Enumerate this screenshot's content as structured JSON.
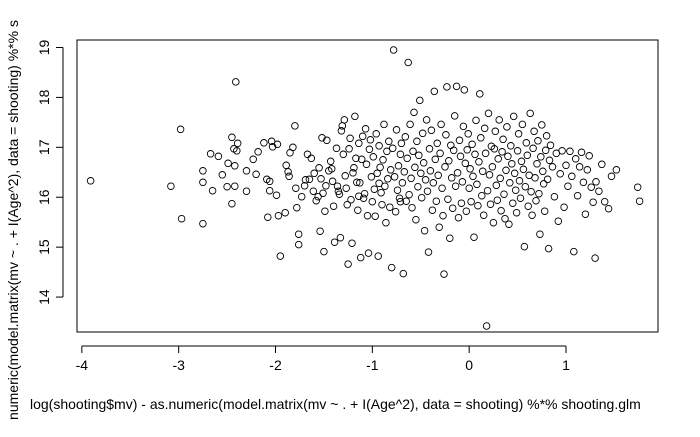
{
  "chart_data": {
    "type": "scatter",
    "marker": "open-circle",
    "marker_color": "#000000",
    "background": "#ffffff",
    "xlabel": "log(shooting$mv) - as.numeric(model.matrix(mv ~ . + I(Age^2), data = shooting) %*% shooting.glm",
    "ylabel": "numeric(model.matrix(mv ~ . + I(Age^2), data = shooting) %*% s",
    "xlim": [
      -4.05,
      1.95
    ],
    "ylim": [
      13.3,
      19.15
    ],
    "xticks": [
      -4,
      -3,
      -2,
      -1,
      0,
      1
    ],
    "xtick_labels": [
      "-4",
      "-3",
      "-2",
      "-1",
      "0",
      "1"
    ],
    "yticks": [
      14,
      15,
      16,
      17,
      18,
      19
    ],
    "ytick_labels": [
      "14",
      "15",
      "16",
      "17",
      "18",
      "19"
    ],
    "grid": false,
    "legend": "none",
    "points": [
      [
        -3.91,
        16.33
      ],
      [
        -3.08,
        16.22
      ],
      [
        -2.98,
        17.36
      ],
      [
        -2.97,
        15.57
      ],
      [
        -2.75,
        16.53
      ],
      [
        -2.75,
        16.3
      ],
      [
        -2.75,
        15.47
      ],
      [
        -2.67,
        16.87
      ],
      [
        -2.65,
        16.13
      ],
      [
        -2.59,
        16.82
      ],
      [
        -2.5,
        16.21
      ],
      [
        -2.49,
        16.68
      ],
      [
        -2.45,
        15.87
      ],
      [
        -2.45,
        17.2
      ],
      [
        -2.43,
        16.97
      ],
      [
        -2.42,
        16.22
      ],
      [
        -2.42,
        16.63
      ],
      [
        -2.41,
        18.31
      ],
      [
        -2.4,
        16.93
      ],
      [
        -2.39,
        17.08
      ],
      [
        -2.3,
        16.53
      ],
      [
        -2.23,
        16.76
      ],
      [
        -2.2,
        16.46
      ],
      [
        -2.18,
        16.91
      ],
      [
        -2.12,
        17.09
      ],
      [
        -2.09,
        16.36
      ],
      [
        -2.08,
        15.6
      ],
      [
        -2.06,
        16.13
      ],
      [
        -2.06,
        16.32
      ],
      [
        -2.04,
        17.12
      ],
      [
        -2.03,
        17.01
      ],
      [
        -1.99,
        16.04
      ],
      [
        -1.97,
        15.63
      ],
      [
        -1.95,
        14.82
      ],
      [
        -1.9,
        15.69
      ],
      [
        -1.89,
        16.64
      ],
      [
        -1.87,
        16.51
      ],
      [
        -1.86,
        16.42
      ],
      [
        -1.85,
        16.89
      ],
      [
        -1.82,
        17.0
      ],
      [
        -1.8,
        17.43
      ],
      [
        -1.79,
        16.18
      ],
      [
        -1.78,
        15.79
      ],
      [
        -1.76,
        15.26
      ],
      [
        -1.76,
        15.05
      ],
      [
        -1.7,
        16.23
      ],
      [
        -1.69,
        16.35
      ],
      [
        -1.67,
        16.86
      ],
      [
        -1.65,
        16.36
      ],
      [
        -1.61,
        16.12
      ],
      [
        -1.6,
        16.48
      ],
      [
        -1.58,
        15.93
      ],
      [
        -1.56,
        16.01
      ],
      [
        -1.55,
        16.59
      ],
      [
        -1.54,
        15.32
      ],
      [
        -1.53,
        16.37
      ],
      [
        -1.52,
        17.19
      ],
      [
        -1.51,
        16.08
      ],
      [
        -1.5,
        14.91
      ],
      [
        -1.49,
        15.72
      ],
      [
        -1.48,
        16.23
      ],
      [
        -1.47,
        17.14
      ],
      [
        -1.45,
        16.53
      ],
      [
        -1.43,
        16.72
      ],
      [
        -1.42,
        16.57
      ],
      [
        -1.41,
        16.32
      ],
      [
        -1.4,
        15.82
      ],
      [
        -1.39,
        15.1
      ],
      [
        -1.37,
        16.98
      ],
      [
        -1.36,
        16.22
      ],
      [
        -1.35,
        16.12
      ],
      [
        -1.34,
        16.06
      ],
      [
        -1.33,
        15.19
      ],
      [
        -1.32,
        17.33
      ],
      [
        -1.31,
        17.43
      ],
      [
        -1.3,
        16.86
      ],
      [
        -1.29,
        17.55
      ],
      [
        -1.28,
        16.43
      ],
      [
        -1.27,
        16.18
      ],
      [
        -1.26,
        15.85
      ],
      [
        -1.25,
        14.66
      ],
      [
        -1.24,
        16.97
      ],
      [
        -1.23,
        17.18
      ],
      [
        -1.22,
        15.95
      ],
      [
        -1.21,
        15.08
      ],
      [
        -1.2,
        16.49
      ],
      [
        -1.19,
        16.59
      ],
      [
        -1.18,
        17.62
      ],
      [
        -1.17,
        16.78
      ],
      [
        -1.16,
        16.3
      ],
      [
        -1.15,
        15.74
      ],
      [
        -1.14,
        17.08
      ],
      [
        -1.13,
        16.29
      ],
      [
        -1.12,
        14.79
      ],
      [
        -1.11,
        16.76
      ],
      [
        -1.1,
        17.22
      ],
      [
        -1.09,
        15.98
      ],
      [
        -1.08,
        16.07
      ],
      [
        -1.07,
        17.37
      ],
      [
        -1.06,
        16.66
      ],
      [
        -1.05,
        15.63
      ],
      [
        -1.04,
        14.88
      ],
      [
        -1.03,
        16.96
      ],
      [
        -1.02,
        17.15
      ],
      [
        -1.01,
        16.41
      ],
      [
        -1.0,
        15.91
      ],
      [
        -0.99,
        16.81
      ],
      [
        -0.98,
        16.16
      ],
      [
        -0.97,
        15.62
      ],
      [
        -0.96,
        17.27
      ],
      [
        -0.95,
        16.48
      ],
      [
        -0.94,
        14.82
      ],
      [
        -0.93,
        17.03
      ],
      [
        -0.92,
        16.6
      ],
      [
        -0.91,
        16.09
      ],
      [
        -0.9,
        15.85
      ],
      [
        -0.89,
        16.75
      ],
      [
        -0.88,
        17.46
      ],
      [
        -0.87,
        16.22
      ],
      [
        -0.86,
        15.49
      ],
      [
        -0.85,
        16.92
      ],
      [
        -0.84,
        16.37
      ],
      [
        -0.83,
        17.12
      ],
      [
        -0.82,
        15.8
      ],
      [
        -0.81,
        16.55
      ],
      [
        -0.8,
        14.59
      ],
      [
        -0.79,
        16.98
      ],
      [
        -0.78,
        18.95
      ],
      [
        -0.77,
        16.41
      ],
      [
        -0.76,
        15.71
      ],
      [
        -0.75,
        17.35
      ],
      [
        -0.74,
        16.14
      ],
      [
        -0.73,
        16.63
      ],
      [
        -0.72,
        15.98
      ],
      [
        -0.71,
        16.86
      ],
      [
        -0.7,
        17.08
      ],
      [
        -0.69,
        16.29
      ],
      [
        -0.68,
        14.47
      ],
      [
        -0.67,
        16.51
      ],
      [
        -0.66,
        17.21
      ],
      [
        -0.65,
        15.92
      ],
      [
        -0.64,
        16.78
      ],
      [
        -0.63,
        18.7
      ],
      [
        -0.62,
        16.05
      ],
      [
        -0.61,
        17.46
      ],
      [
        -0.6,
        16.38
      ],
      [
        -0.59,
        15.79
      ],
      [
        -0.58,
        16.92
      ],
      [
        -0.57,
        17.7
      ],
      [
        -0.56,
        16.6
      ],
      [
        -0.55,
        15.55
      ],
      [
        -0.54,
        17.12
      ],
      [
        -0.53,
        16.21
      ],
      [
        -0.52,
        16.84
      ],
      [
        -0.51,
        17.94
      ],
      [
        -0.5,
        16.48
      ],
      [
        -0.49,
        15.99
      ],
      [
        -0.48,
        17.28
      ],
      [
        -0.47,
        16.69
      ],
      [
        -0.46,
        15.33
      ],
      [
        -0.45,
        16.35
      ],
      [
        -0.44,
        17.55
      ],
      [
        -0.43,
        16.12
      ],
      [
        -0.42,
        14.9
      ],
      [
        -0.41,
        16.97
      ],
      [
        -0.4,
        16.53
      ],
      [
        -0.39,
        17.34
      ],
      [
        -0.38,
        15.74
      ],
      [
        -0.37,
        16.29
      ],
      [
        -0.36,
        18.12
      ],
      [
        -0.35,
        16.76
      ],
      [
        -0.34,
        15.92
      ],
      [
        -0.33,
        17.08
      ],
      [
        -0.32,
        16.44
      ],
      [
        -0.31,
        15.4
      ],
      [
        -0.3,
        16.88
      ],
      [
        -0.29,
        17.46
      ],
      [
        -0.28,
        16.18
      ],
      [
        -0.27,
        15.63
      ],
      [
        -0.26,
        14.46
      ],
      [
        -0.25,
        16.61
      ],
      [
        -0.24,
        17.25
      ],
      [
        -0.23,
        18.21
      ],
      [
        -0.22,
        15.96
      ],
      [
        -0.21,
        16.73
      ],
      [
        -0.2,
        15.18
      ],
      [
        -0.19,
        17.04
      ],
      [
        -0.18,
        16.39
      ],
      [
        -0.17,
        15.78
      ],
      [
        -0.16,
        16.94
      ],
      [
        -0.15,
        17.63
      ],
      [
        -0.14,
        16.22
      ],
      [
        -0.13,
        18.22
      ],
      [
        -0.12,
        16.49
      ],
      [
        -0.11,
        15.59
      ],
      [
        -0.1,
        17.14
      ],
      [
        -0.09,
        16.82
      ],
      [
        -0.08,
        15.88
      ],
      [
        -0.07,
        16.31
      ],
      [
        -0.06,
        17.42
      ],
      [
        -0.05,
        18.15
      ],
      [
        -0.04,
        16.68
      ],
      [
        -0.03,
        15.72
      ],
      [
        -0.02,
        16.95
      ],
      [
        -0.01,
        17.27
      ],
      [
        0.0,
        16.18
      ],
      [
        0.01,
        16.57
      ],
      [
        0.02,
        15.91
      ],
      [
        0.03,
        17.06
      ],
      [
        0.04,
        16.42
      ],
      [
        0.05,
        15.2
      ],
      [
        0.06,
        16.86
      ],
      [
        0.07,
        17.54
      ],
      [
        0.08,
        16.26
      ],
      [
        0.09,
        15.83
      ],
      [
        0.1,
        16.71
      ],
      [
        0.11,
        18.07
      ],
      [
        0.12,
        17.19
      ],
      [
        0.13,
        16.03
      ],
      [
        0.14,
        16.52
      ],
      [
        0.15,
        15.64
      ],
      [
        0.16,
        17.38
      ],
      [
        0.17,
        16.88
      ],
      [
        0.18,
        13.42
      ],
      [
        0.19,
        16.13
      ],
      [
        0.2,
        17.68
      ],
      [
        0.21,
        16.45
      ],
      [
        0.22,
        15.86
      ],
      [
        0.23,
        17.02
      ],
      [
        0.24,
        16.61
      ],
      [
        0.25,
        15.49
      ],
      [
        0.26,
        16.97
      ],
      [
        0.27,
        17.32
      ],
      [
        0.28,
        16.24
      ],
      [
        0.29,
        15.94
      ],
      [
        0.3,
        16.77
      ],
      [
        0.31,
        17.55
      ],
      [
        0.32,
        16.38
      ],
      [
        0.33,
        15.73
      ],
      [
        0.34,
        16.91
      ],
      [
        0.35,
        17.16
      ],
      [
        0.36,
        16.06
      ],
      [
        0.37,
        15.57
      ],
      [
        0.38,
        16.54
      ],
      [
        0.39,
        17.41
      ],
      [
        0.4,
        16.82
      ],
      [
        0.41,
        15.46
      ],
      [
        0.42,
        16.29
      ],
      [
        0.43,
        17.03
      ],
      [
        0.44,
        16.67
      ],
      [
        0.45,
        15.88
      ],
      [
        0.46,
        17.62
      ],
      [
        0.47,
        16.48
      ],
      [
        0.48,
        16.14
      ],
      [
        0.49,
        15.69
      ],
      [
        0.5,
        16.93
      ],
      [
        0.51,
        17.27
      ],
      [
        0.52,
        16.33
      ],
      [
        0.53,
        15.98
      ],
      [
        0.54,
        16.72
      ],
      [
        0.55,
        17.46
      ],
      [
        0.56,
        16.56
      ],
      [
        0.57,
        15.01
      ],
      [
        0.58,
        16.21
      ],
      [
        0.59,
        17.09
      ],
      [
        0.6,
        16.84
      ],
      [
        0.61,
        15.82
      ],
      [
        0.62,
        16.44
      ],
      [
        0.63,
        17.68
      ],
      [
        0.64,
        16.11
      ],
      [
        0.65,
        15.64
      ],
      [
        0.66,
        16.98
      ],
      [
        0.67,
        17.32
      ],
      [
        0.68,
        16.39
      ],
      [
        0.69,
        15.93
      ],
      [
        0.7,
        16.67
      ],
      [
        0.71,
        17.13
      ],
      [
        0.72,
        16.07
      ],
      [
        0.73,
        15.26
      ],
      [
        0.74,
        16.81
      ],
      [
        0.75,
        17.45
      ],
      [
        0.76,
        16.52
      ],
      [
        0.77,
        16.27
      ],
      [
        0.78,
        15.72
      ],
      [
        0.79,
        16.94
      ],
      [
        0.8,
        17.23
      ],
      [
        0.81,
        16.36
      ],
      [
        0.82,
        14.97
      ],
      [
        0.83,
        16.74
      ],
      [
        0.84,
        17.04
      ],
      [
        0.86,
        16.61
      ],
      [
        0.88,
        16.01
      ],
      [
        0.9,
        16.88
      ],
      [
        0.92,
        15.52
      ],
      [
        0.94,
        16.47
      ],
      [
        0.96,
        16.93
      ],
      [
        0.98,
        15.8
      ],
      [
        1.0,
        16.64
      ],
      [
        1.02,
        16.22
      ],
      [
        1.04,
        16.92
      ],
      [
        1.06,
        16.42
      ],
      [
        1.08,
        14.91
      ],
      [
        1.1,
        16.77
      ],
      [
        1.12,
        16.03
      ],
      [
        1.14,
        16.61
      ],
      [
        1.16,
        16.9
      ],
      [
        1.18,
        16.3
      ],
      [
        1.2,
        15.66
      ],
      [
        1.22,
        16.55
      ],
      [
        1.24,
        16.83
      ],
      [
        1.26,
        16.2
      ],
      [
        1.28,
        15.9
      ],
      [
        1.3,
        14.78
      ],
      [
        1.31,
        16.31
      ],
      [
        1.34,
        16.12
      ],
      [
        1.37,
        16.66
      ],
      [
        1.4,
        15.91
      ],
      [
        1.44,
        15.77
      ],
      [
        1.47,
        16.42
      ],
      [
        1.52,
        16.55
      ],
      [
        1.74,
        16.2
      ],
      [
        1.76,
        15.92
      ],
      [
        -2.3,
        16.12
      ],
      [
        -2.55,
        16.45
      ],
      [
        -1.98,
        17.06
      ],
      [
        -1.73,
        16.01
      ],
      [
        -1.63,
        16.78
      ],
      [
        -1.14,
        16.02
      ],
      [
        -0.93,
        16.28
      ],
      [
        -0.71,
        15.91
      ]
    ]
  }
}
